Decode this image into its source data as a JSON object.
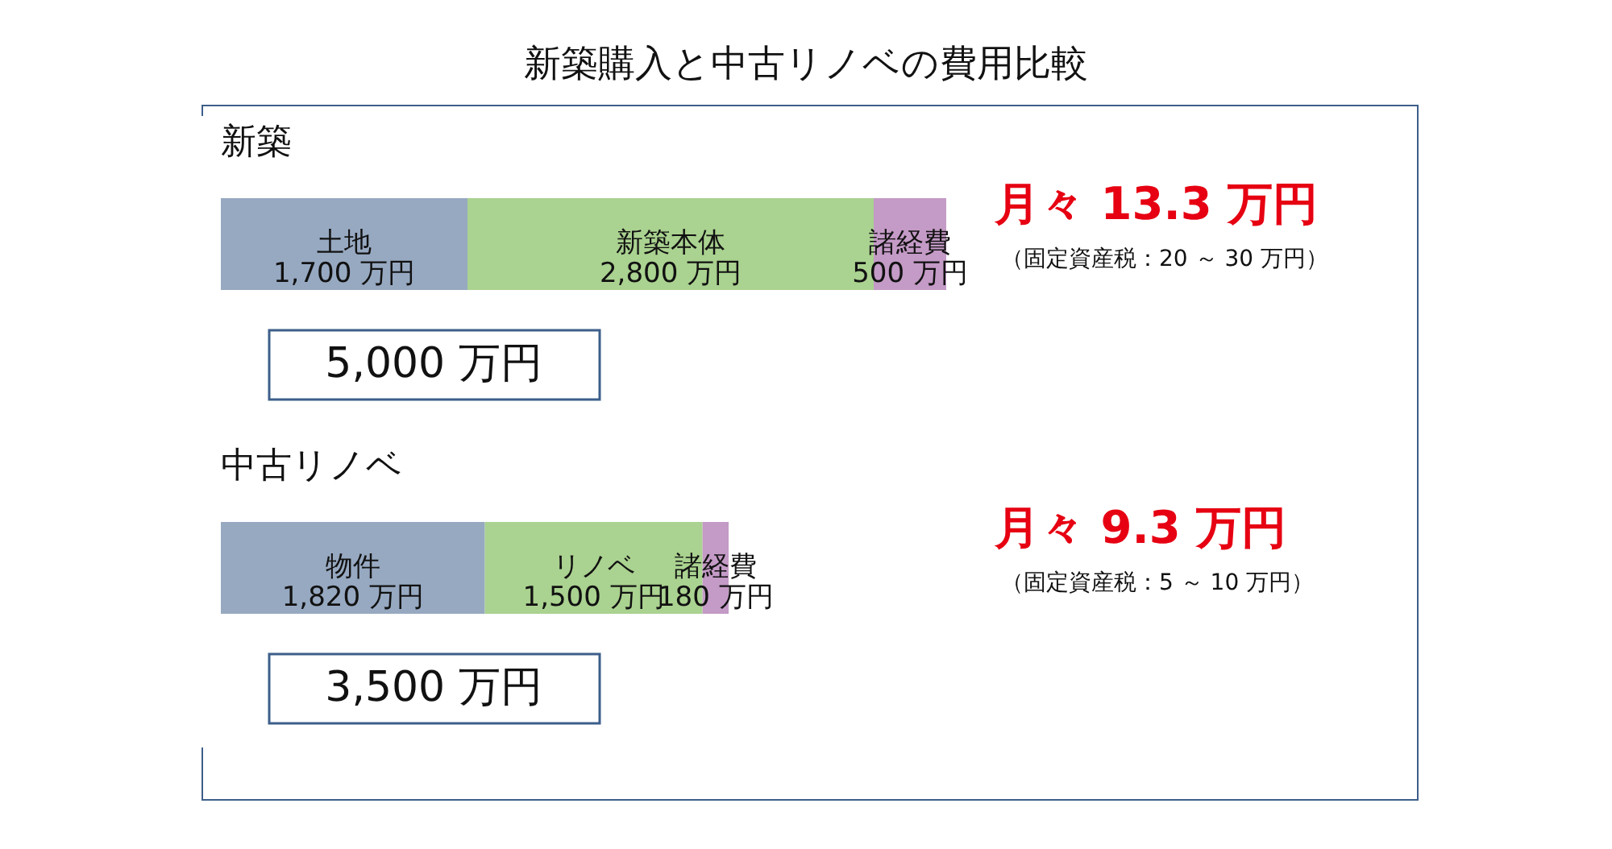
{
  "chart_data": [
    {
      "type": "bar",
      "orientation": "horizontal",
      "stacked": true,
      "title": "新築購入と中古リノベの費用比較",
      "subtitle": "新築",
      "categories": [
        null
      ],
      "series": [
        {
          "name": "土地",
          "color": "#97a9c1",
          "values": [
            1700
          ],
          "value_labels": [
            "1,700 万円"
          ]
        },
        {
          "name": "新築本体",
          "color": "#aad290",
          "values": [
            2800
          ],
          "value_labels": [
            "2,800 万円"
          ]
        },
        {
          "name": "諸経費",
          "color": "#c49ac6",
          "values": [
            500
          ],
          "value_labels": [
            "500 万円"
          ]
        }
      ],
      "annotations": [
        "5,000 万円",
        "月々 13.3 万円",
        "（固定資産税：20 ～ 30 万円）"
      ]
    },
    {
      "type": "bar",
      "orientation": "horizontal",
      "stacked": true,
      "title": "中古リノベ",
      "categories": [
        null
      ],
      "series": [
        {
          "name": "物件",
          "color": "#97a9c1",
          "values": [
            1820
          ],
          "value_labels": [
            "1,820 万円"
          ]
        },
        {
          "name": "リノベ",
          "color": "#aad290",
          "values": [
            1500
          ],
          "value_labels": [
            "1,500 万円"
          ]
        },
        {
          "name": "諸経費",
          "color": "#c49ac6",
          "values": [
            180
          ],
          "value_labels": [
            "180 万円"
          ]
        }
      ],
      "annotations": [
        "3,500 万円",
        "月々 9.3 万円",
        "（固定資産税：5 ～ 10 万円）"
      ]
    }
  ]
}
